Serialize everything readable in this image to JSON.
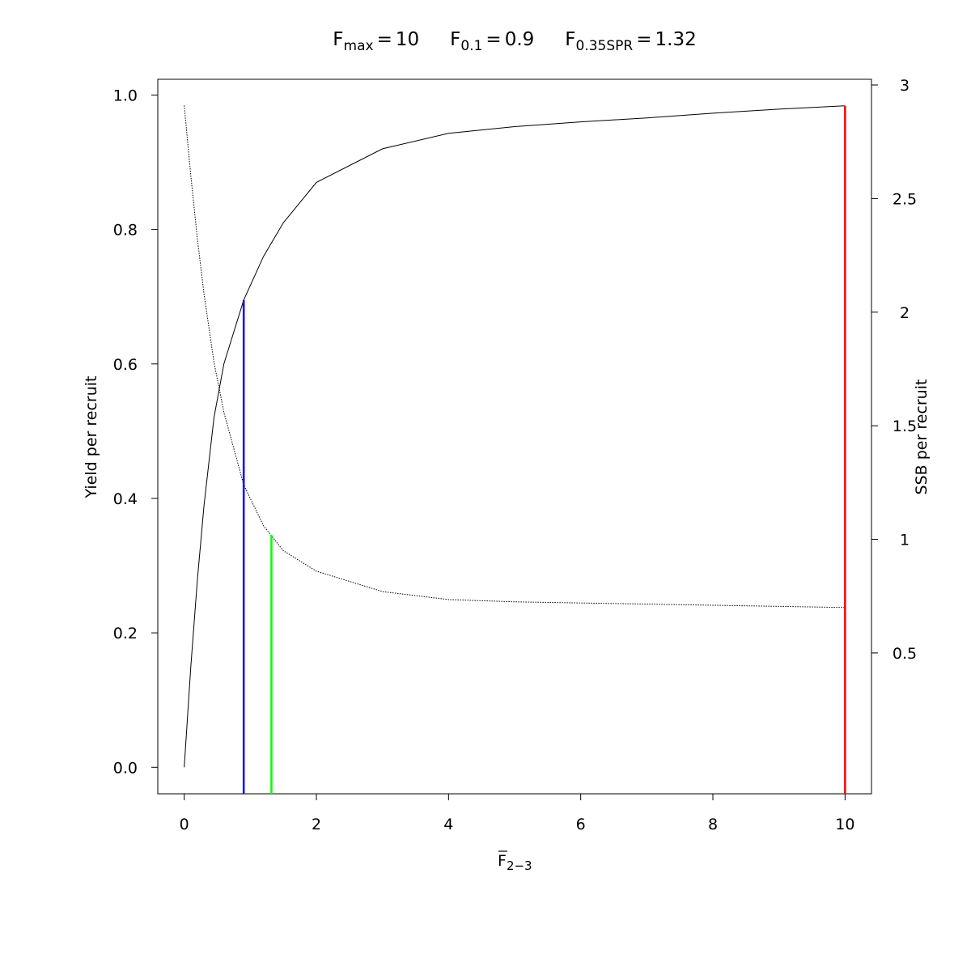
{
  "chart_data": {
    "type": "line",
    "reference_points": [
      {
        "symbol": "F",
        "subscript": "max",
        "value": 10,
        "color": "#ff0000",
        "top": 0.984,
        "top_axis": "y"
      },
      {
        "symbol": "F",
        "subscript": "0.1",
        "value": 0.9,
        "color": "#0000ff",
        "top": 0.695,
        "top_axis": "y"
      },
      {
        "symbol": "F",
        "subscript": "0.35SPR",
        "value": 1.32,
        "color": "#00ff00",
        "top": 1.02,
        "top_axis": "y2"
      }
    ],
    "operator": "=",
    "xlabel": {
      "text": "F",
      "subscript": "2−3",
      "overline": true
    },
    "ylabel": "Yield per recruit",
    "y2label": "SSB per recruit",
    "x": [
      0,
      0.1,
      0.2,
      0.3,
      0.45,
      0.6,
      0.9,
      1.2,
      1.5,
      2,
      3,
      4,
      5,
      6,
      7,
      8,
      9,
      10
    ],
    "series": [
      {
        "color": "#000000",
        "dash": "solid",
        "axis": "y",
        "values": [
          0,
          0.15,
          0.28,
          0.39,
          0.52,
          0.6,
          0.695,
          0.76,
          0.81,
          0.87,
          0.92,
          0.943,
          0.953,
          0.96,
          0.966,
          0.973,
          0.979,
          0.984
        ]
      },
      {
        "color": "#000000",
        "dash": "dotted",
        "axis": "y2",
        "values": [
          2.91,
          2.6,
          2.32,
          2.08,
          1.78,
          1.56,
          1.24,
          1.06,
          0.95,
          0.86,
          0.77,
          0.735,
          0.725,
          0.72,
          0.715,
          0.71,
          0.705,
          0.7
        ]
      }
    ],
    "xlim": [
      -0.4,
      10.4
    ],
    "xticks": [
      0,
      2,
      4,
      6,
      8,
      10
    ],
    "ylim": [
      -0.0394,
      1.0234
    ],
    "yticks": [
      {
        "value": 0,
        "label": "0.0"
      },
      0.2,
      0.4,
      0.6,
      0.8,
      {
        "value": 1,
        "label": "1.0"
      }
    ],
    "y2lim": [
      -0.12,
      3.025
    ],
    "y2ticks": [
      0.5,
      1,
      1.5,
      2,
      2.5,
      3
    ]
  }
}
